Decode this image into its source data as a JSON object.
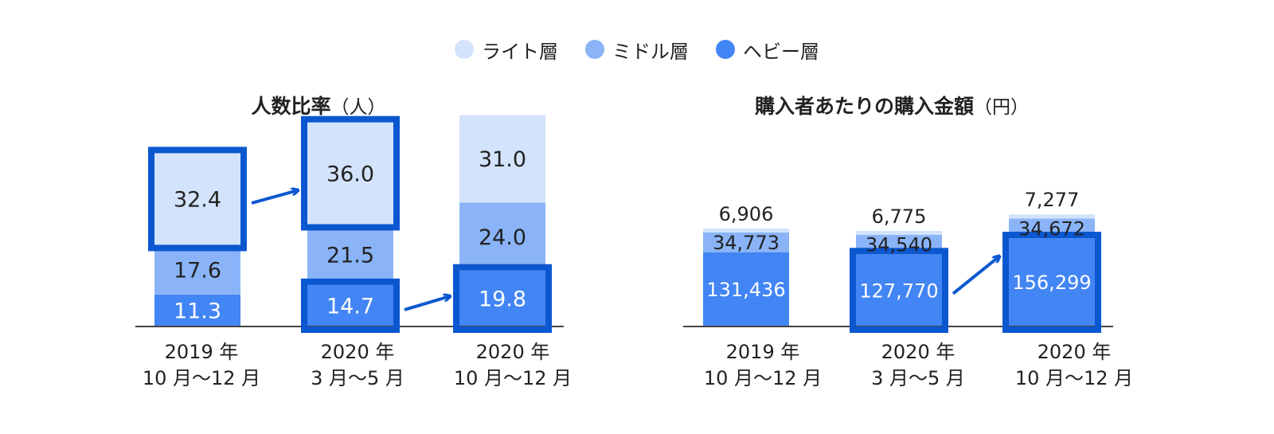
{
  "legend": [
    {
      "label": "ライト層",
      "color": "#d3e3fc"
    },
    {
      "label": "ミドル層",
      "color": "#8ab4f7"
    },
    {
      "label": "ヘビー層",
      "color": "#4285f4"
    }
  ],
  "categories": [
    {
      "line1": "2019 年",
      "line2": "10 月〜12 月"
    },
    {
      "line1": "2020 年",
      "line2": "3 月〜5 月"
    },
    {
      "line1": "2020 年",
      "line2": "10 月〜12 月"
    }
  ],
  "highlight_color": "#0b57d0",
  "chart_data": [
    {
      "type": "bar",
      "stacked": true,
      "title": "人数比率",
      "unit": "（人）",
      "categories": [
        "2019 年 10 月〜12 月",
        "2020 年 3 月〜5 月",
        "2020 年 10 月〜12 月"
      ],
      "series": [
        {
          "name": "ヘビー層",
          "values": [
            11.3,
            14.7,
            19.8
          ],
          "labels": [
            "11.3",
            "14.7",
            "19.8"
          ]
        },
        {
          "name": "ミドル層",
          "values": [
            17.6,
            21.5,
            24.0
          ],
          "labels": [
            "17.6",
            "21.5",
            "24.0"
          ]
        },
        {
          "name": "ライト層",
          "values": [
            32.4,
            36.0,
            31.0
          ],
          "labels": [
            "32.4",
            "36.0",
            "31.0"
          ]
        }
      ],
      "highlighted": [
        {
          "series": "ライト層",
          "category": 0
        },
        {
          "series": "ライト層",
          "category": 1
        },
        {
          "series": "ヘビー層",
          "category": 1
        },
        {
          "series": "ヘビー層",
          "category": 2
        }
      ],
      "arrows": [
        {
          "from": {
            "series": "ライト層",
            "category": 0
          },
          "to": {
            "series": "ライト層",
            "category": 1
          }
        },
        {
          "from": {
            "series": "ヘビー層",
            "category": 1
          },
          "to": {
            "series": "ヘビー層",
            "category": 2
          }
        }
      ]
    },
    {
      "type": "bar",
      "stacked": true,
      "title": "購入者あたりの購入金額",
      "unit": "（円）",
      "categories": [
        "2019 年 10 月〜12 月",
        "2020 年 3 月〜5 月",
        "2020 年 10 月〜12 月"
      ],
      "series": [
        {
          "name": "ヘビー層",
          "values": [
            131436,
            127770,
            156299
          ],
          "labels": [
            "131,436",
            "127,770",
            "156,299"
          ]
        },
        {
          "name": "ミドル層",
          "values": [
            34773,
            34540,
            34672
          ],
          "labels": [
            "34,773",
            "34,540",
            "34,672"
          ]
        },
        {
          "name": "ライト層",
          "values": [
            6906,
            6775,
            7277
          ],
          "labels": [
            "6,906",
            "6,775",
            "7,277"
          ]
        }
      ],
      "highlighted": [
        {
          "series": "ヘビー層",
          "category": 1
        },
        {
          "series": "ヘビー層",
          "category": 2
        }
      ],
      "arrows": [
        {
          "from": {
            "series": "ヘビー層",
            "category": 1
          },
          "to": {
            "series": "ヘビー層",
            "category": 2
          }
        }
      ]
    }
  ]
}
